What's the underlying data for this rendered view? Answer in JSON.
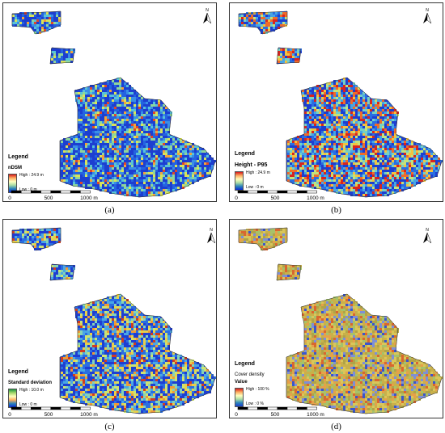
{
  "panels": [
    {
      "caption": "(a)",
      "legend_title": "Legend",
      "variable_title": "nDSM",
      "sub_title": "",
      "high_label": "High : 24.9 m",
      "low_label": "Low : 0 m",
      "ramp": [
        "#d7191c",
        "#fdae61",
        "#ffffbf",
        "#abdda4",
        "#2b83ba",
        "#0b2bd6"
      ],
      "palette": [
        "#1d3fd0",
        "#2463e0",
        "#3a8fe6",
        "#57c3d8",
        "#8fd69a",
        "#d9e35a",
        "#f3a33a",
        "#e0462b"
      ],
      "weights": [
        34,
        18,
        12,
        10,
        9,
        8,
        5,
        4
      ],
      "scale_labels": [
        "0",
        "500",
        "1000 m"
      ]
    },
    {
      "caption": "(b)",
      "legend_title": "Legend",
      "variable_title": "Height - P95",
      "sub_title": "",
      "high_label": "High : 24.9 m",
      "low_label": "Low : 0 m",
      "ramp": [
        "#d7191c",
        "#fdae61",
        "#ffffbf",
        "#abdda4",
        "#2b83ba",
        "#0b2bd6"
      ],
      "palette": [
        "#1d3fd0",
        "#2a6ee2",
        "#46a5e6",
        "#76d0c4",
        "#c4e27a",
        "#f4c23e",
        "#ef6b2a",
        "#d8241f"
      ],
      "weights": [
        22,
        16,
        12,
        10,
        10,
        10,
        10,
        10
      ],
      "scale_labels": [
        "0",
        "500",
        "1000 m"
      ]
    },
    {
      "caption": "(c)",
      "legend_title": "Legend",
      "variable_title": "Standard deviation",
      "sub_title": "",
      "high_label": "High : 10.0 m",
      "low_label": "Low : 0 m",
      "ramp": [
        "#1a9641",
        "#a6d96a",
        "#ffffbf",
        "#fdae61",
        "#2b83ba",
        "#0b2bd6"
      ],
      "palette": [
        "#1e3ed2",
        "#2a6ee2",
        "#4aa7e4",
        "#86d3b6",
        "#cde372",
        "#e9cf4a",
        "#f09a36",
        "#cf3b22"
      ],
      "weights": [
        28,
        18,
        12,
        10,
        10,
        10,
        7,
        5
      ],
      "scale_labels": [
        "0",
        "500",
        "1000 m"
      ]
    },
    {
      "caption": "(d)",
      "legend_title": "Legend",
      "variable_title": "Cover density",
      "sub_title": "Value",
      "high_label": "High : 100 %",
      "low_label": "Low : 0 %",
      "ramp": [
        "#d7191c",
        "#fdae61",
        "#ffffbf",
        "#abdda4",
        "#2b83ba",
        "#1a3fd0"
      ],
      "palette": [
        "#c9b04a",
        "#d9c65a",
        "#b0a348",
        "#e6a04a",
        "#d9672f",
        "#7e8fd6",
        "#3a56cc",
        "#a6c26a"
      ],
      "weights": [
        22,
        16,
        12,
        12,
        10,
        10,
        8,
        10
      ],
      "scale_labels": [
        "0",
        "500",
        "1000 m"
      ]
    }
  ],
  "north_label": "N"
}
